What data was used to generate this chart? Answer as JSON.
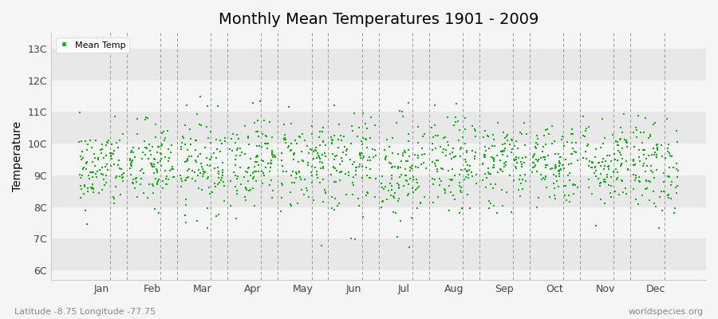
{
  "title": "Monthly Mean Temperatures 1901 - 2009",
  "ylabel": "Temperature",
  "subtitle_left": "Latitude -8.75 Longitude -77.75",
  "subtitle_right": "worldspecies.org",
  "months": [
    "Jan",
    "Feb",
    "Mar",
    "Apr",
    "May",
    "Jun",
    "Jul",
    "Aug",
    "Sep",
    "Oct",
    "Nov",
    "Dec"
  ],
  "ytick_labels": [
    "6C",
    "7C",
    "8C",
    "9C",
    "10C",
    "11C",
    "12C",
    "13C"
  ],
  "ytick_values": [
    6,
    7,
    8,
    9,
    10,
    11,
    12,
    13
  ],
  "ylim": [
    5.7,
    13.5
  ],
  "xlim": [
    -0.5,
    12.5
  ],
  "dot_color": "#00bb00",
  "background_color": "#f5f5f5",
  "band_colors_light": "#f5f5f5",
  "band_colors_dark": "#e8e8e8",
  "legend_label": "Mean Temp",
  "num_years": 109,
  "seed": 42,
  "monthly_means": [
    9.2,
    9.3,
    9.4,
    9.5,
    9.4,
    9.3,
    9.2,
    9.3,
    9.4,
    9.4,
    9.4,
    9.3
  ],
  "monthly_stds": [
    0.65,
    0.7,
    0.75,
    0.7,
    0.75,
    0.8,
    0.85,
    0.75,
    0.7,
    0.65,
    0.7,
    0.75
  ],
  "title_fontsize": 14,
  "tick_fontsize": 9,
  "ylabel_fontsize": 10,
  "dot_size": 4,
  "legend_fontsize": 8,
  "dashed_color": "#999999",
  "spine_color": "#cccccc",
  "subtitle_fontsize": 8,
  "subtitle_color": "#888888"
}
